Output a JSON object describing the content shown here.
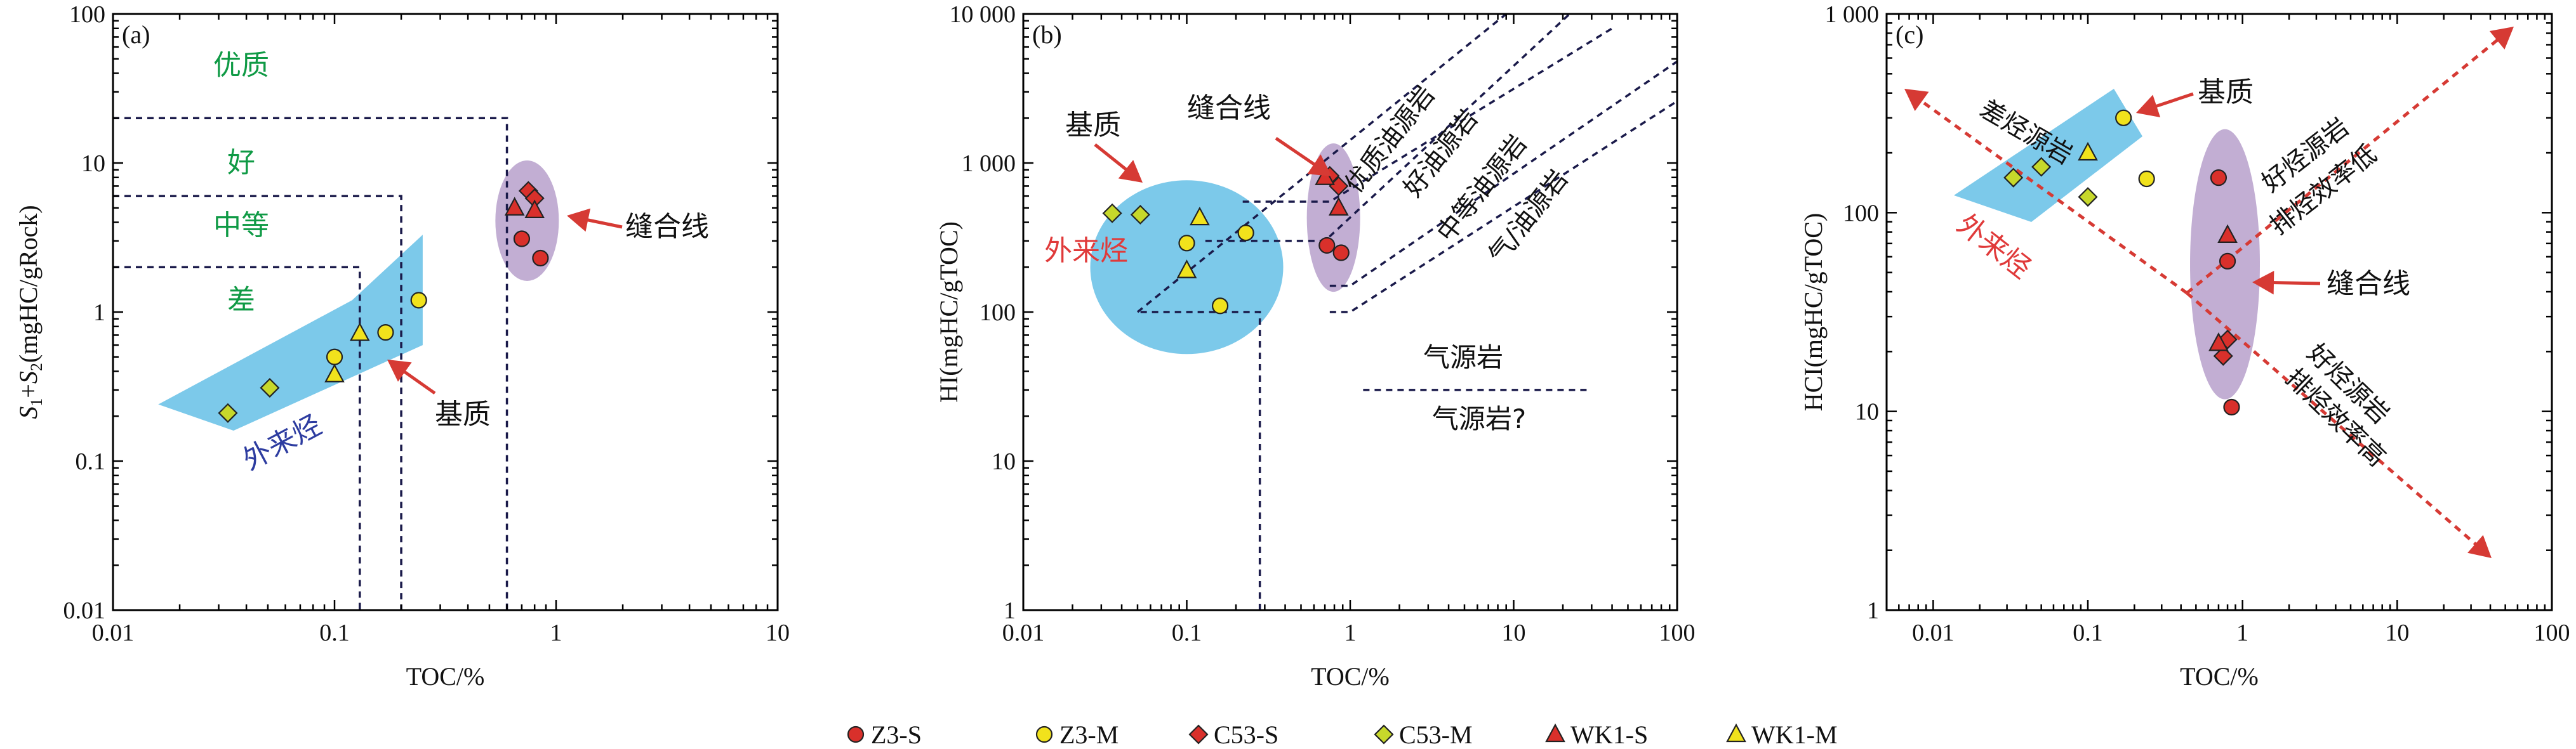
{
  "colors": {
    "red": "#d9302b",
    "yellow_green": "#c7d82b",
    "yellow": "#f1e21c",
    "green_label": "#0f9a45",
    "blue_fill": "#7cc9ea",
    "purple_fill": "#c2aed3",
    "red_text": "#e03a3a",
    "blue_text": "#2d3ca0",
    "dash": "#1a1a4a",
    "arrow": "#d63a34"
  },
  "legend": [
    {
      "label": "Z3-S",
      "shape": "circle",
      "fill": "red"
    },
    {
      "label": "Z3-M",
      "shape": "circle",
      "fill": "yellow"
    },
    {
      "label": "C53-S",
      "shape": "diamond",
      "fill": "red"
    },
    {
      "label": "C53-M",
      "shape": "diamond",
      "fill": "yellow_green"
    },
    {
      "label": "WK1-S",
      "shape": "triangle",
      "fill": "red"
    },
    {
      "label": "WK1-M",
      "shape": "triangle",
      "fill": "yellow"
    }
  ],
  "chart_data": [
    {
      "type": "scatter",
      "panel_label": "(a)",
      "xlabel": "TOC/%",
      "ylabel": "S1+S2(mgHC/gRock)",
      "xlim": [
        0.01,
        10
      ],
      "ylim": [
        0.01,
        100
      ],
      "xscale": "log",
      "yscale": "log",
      "xticks": [
        "0.01",
        "0.1",
        "1",
        "10"
      ],
      "yticks": [
        "0.01",
        "0.1",
        "1",
        "10",
        "100"
      ],
      "grade_labels": [
        "优质",
        "好",
        "中等",
        "差"
      ],
      "annotations": [
        "缝合线",
        "基质",
        "外来烃"
      ],
      "series": [
        {
          "name": "Z3-S",
          "points": [
            [
              0.7,
              3.1
            ],
            [
              0.85,
              2.3
            ]
          ]
        },
        {
          "name": "C53-S",
          "points": [
            [
              0.75,
              6.5
            ],
            [
              0.8,
              5.8
            ]
          ]
        },
        {
          "name": "WK1-S",
          "points": [
            [
              0.65,
              5.0
            ],
            [
              0.8,
              4.8
            ]
          ]
        },
        {
          "name": "Z3-M",
          "points": [
            [
              0.1,
              0.5
            ],
            [
              0.17,
              0.73
            ],
            [
              0.24,
              1.2
            ]
          ]
        },
        {
          "name": "C53-M",
          "points": [
            [
              0.033,
              0.21
            ],
            [
              0.051,
              0.31
            ]
          ]
        },
        {
          "name": "WK1-M",
          "points": [
            [
              0.1,
              0.38
            ],
            [
              0.13,
              0.72
            ]
          ]
        }
      ]
    },
    {
      "type": "scatter",
      "panel_label": "(b)",
      "xlabel": "TOC/%",
      "ylabel": "HI(mgHC/gTOC)",
      "xlim": [
        0.01,
        100
      ],
      "ylim": [
        1,
        10000
      ],
      "xscale": "log",
      "yscale": "log",
      "xticks": [
        "0.01",
        "0.1",
        "1",
        "10",
        "100"
      ],
      "yticks": [
        "1",
        "10",
        "100",
        "1 000",
        "10 000"
      ],
      "zone_labels": [
        "优质油源岩",
        "好油源岩",
        "中等油源岩",
        "气/油源岩",
        "气源岩",
        "气源岩?"
      ],
      "annotations": [
        "基质",
        "缝合线",
        "外来烃"
      ],
      "series": [
        {
          "name": "Z3-S",
          "points": [
            [
              0.72,
              280
            ],
            [
              0.88,
              250
            ]
          ]
        },
        {
          "name": "C53-S",
          "points": [
            [
              0.75,
              820
            ],
            [
              0.85,
              700
            ]
          ]
        },
        {
          "name": "WK1-S",
          "points": [
            [
              0.7,
              800
            ],
            [
              0.85,
              500
            ]
          ]
        },
        {
          "name": "Z3-M",
          "points": [
            [
              0.1,
              290
            ],
            [
              0.16,
              110
            ],
            [
              0.23,
              340
            ]
          ]
        },
        {
          "name": "C53-M",
          "points": [
            [
              0.035,
              460
            ],
            [
              0.052,
              450
            ]
          ]
        },
        {
          "name": "WK1-M",
          "points": [
            [
              0.1,
              190
            ],
            [
              0.12,
              430
            ]
          ]
        }
      ]
    },
    {
      "type": "scatter",
      "panel_label": "(c)",
      "xlabel": "TOC/%",
      "ylabel": "HCI(mgHC/gTOC)",
      "xlim": [
        0.005,
        100
      ],
      "ylim": [
        1,
        1000
      ],
      "xscale": "log",
      "yscale": "log",
      "xticks": [
        "0.01",
        "0.1",
        "1",
        "10",
        "100"
      ],
      "yticks": [
        "1",
        "10",
        "100",
        "1 000"
      ],
      "annotations": [
        "基质",
        "缝合线",
        "差烃源岩",
        "外来烃",
        "好烃源岩",
        "排烃效率低",
        "好烃源岩",
        "排烃效率高"
      ],
      "series": [
        {
          "name": "Z3-S",
          "points": [
            [
              0.7,
              150
            ],
            [
              0.8,
              57
            ],
            [
              0.85,
              10.5
            ]
          ]
        },
        {
          "name": "C53-S",
          "points": [
            [
              0.75,
              19
            ],
            [
              0.8,
              23
            ]
          ]
        },
        {
          "name": "WK1-S",
          "points": [
            [
              0.7,
              22
            ],
            [
              0.8,
              77
            ]
          ]
        },
        {
          "name": "Z3-M",
          "points": [
            [
              0.17,
              300
            ],
            [
              0.24,
              148
            ]
          ]
        },
        {
          "name": "C53-M",
          "points": [
            [
              0.033,
              150
            ],
            [
              0.05,
              170
            ],
            [
              0.1,
              120
            ]
          ]
        },
        {
          "name": "WK1-M",
          "points": [
            [
              0.1,
              200
            ]
          ]
        }
      ]
    }
  ]
}
